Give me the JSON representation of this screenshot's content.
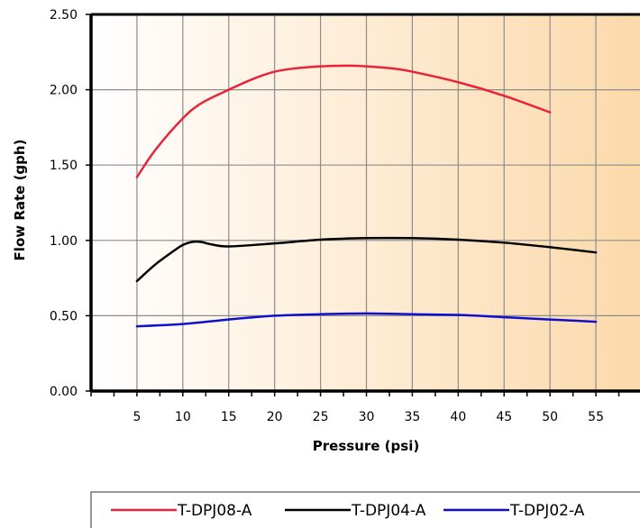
{
  "chart_data": {
    "type": "line",
    "xlabel": "Pressure (psi)",
    "ylabel": "Flow Rate (gph)",
    "xlim": [
      0,
      60
    ],
    "ylim": [
      0,
      2.5
    ],
    "x_ticks": [
      "5",
      "10",
      "15",
      "20",
      "25",
      "30",
      "35",
      "40",
      "45",
      "50",
      "55"
    ],
    "y_ticks": [
      "0.00",
      "0.50",
      "1.00",
      "1.50",
      "2.00",
      "2.50"
    ],
    "grid": true,
    "legend_position": "bottom",
    "background_gradient": [
      "#ffffff",
      "#fcd9aa"
    ],
    "series": [
      {
        "name": "T-DPJ08-A",
        "color": "#e8233a",
        "x": [
          5,
          7,
          10,
          12,
          15,
          18,
          20,
          22,
          25,
          28,
          30,
          33,
          35,
          40,
          45,
          50
        ],
        "values": [
          1.42,
          1.6,
          1.81,
          1.91,
          2.0,
          2.08,
          2.12,
          2.14,
          2.155,
          2.16,
          2.155,
          2.14,
          2.12,
          2.05,
          1.96,
          1.85
        ]
      },
      {
        "name": "T-DPJ04-A",
        "color": "#000000",
        "x": [
          5,
          7,
          9,
          10,
          11,
          12,
          13,
          15,
          20,
          25,
          30,
          35,
          40,
          45,
          50,
          55
        ],
        "values": [
          0.73,
          0.84,
          0.93,
          0.97,
          0.99,
          0.99,
          0.975,
          0.96,
          0.98,
          1.005,
          1.015,
          1.015,
          1.005,
          0.985,
          0.955,
          0.92
        ]
      },
      {
        "name": "T-DPJ02-A",
        "color": "#1010cc",
        "x": [
          5,
          10,
          15,
          20,
          25,
          30,
          35,
          40,
          45,
          50,
          55
        ],
        "values": [
          0.43,
          0.445,
          0.475,
          0.5,
          0.51,
          0.515,
          0.51,
          0.505,
          0.49,
          0.475,
          0.46
        ]
      }
    ]
  }
}
